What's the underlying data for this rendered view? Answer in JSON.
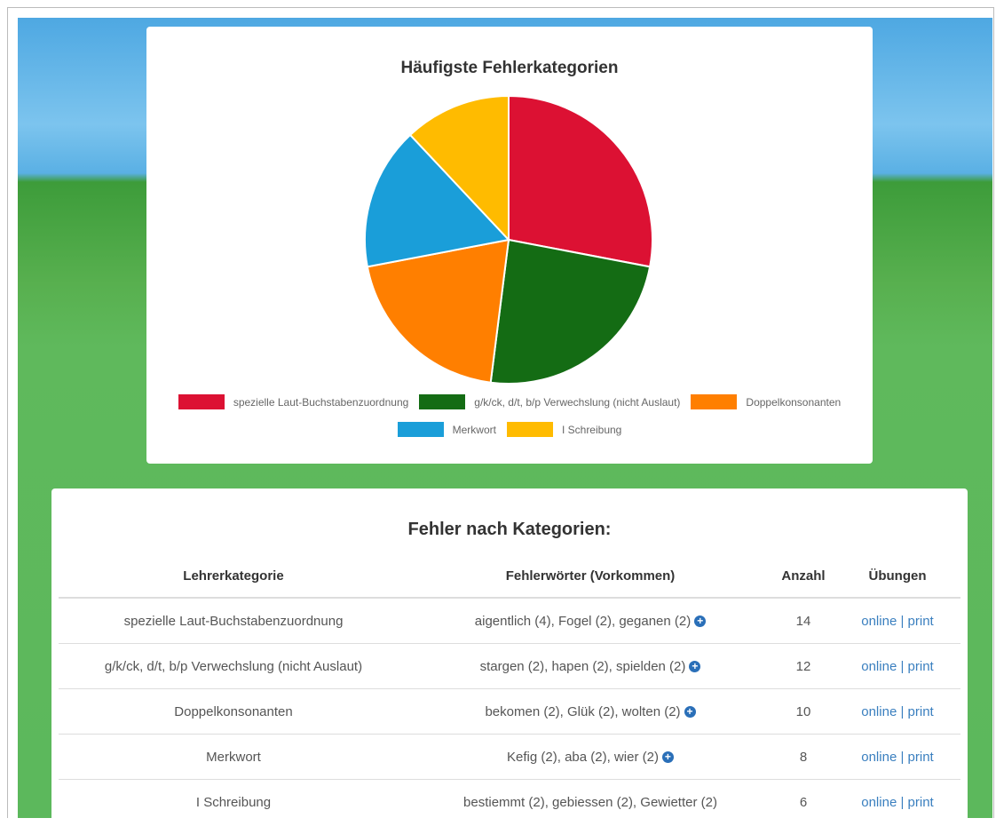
{
  "chart_data": {
    "type": "pie",
    "title": "Häufigste Fehlerkategorien",
    "categories": [
      "spezielle Laut-Buchstabenzuordnung",
      "g/k/ck, d/t, b/p Verwechslung (nicht Auslaut)",
      "Doppelkonsonanten",
      "Merkwort",
      "I Schreibung"
    ],
    "values": [
      14,
      12,
      10,
      8,
      6
    ],
    "colors": [
      "#dc1133",
      "#146c14",
      "#ff7f00",
      "#1a9ed9",
      "#ffbb00"
    ]
  },
  "table": {
    "title": "Fehler nach Kategorien:",
    "headers": [
      "Lehrerkategorie",
      "Fehlerwörter (Vorkommen)",
      "Anzahl",
      "Übungen"
    ],
    "link_separator": "|",
    "rows": [
      {
        "category": "spezielle Laut-Buchstabenzuordnung",
        "words": "aigentlich (4), Fogel (2), geganen (2)",
        "expandable": true,
        "count": 14,
        "links": [
          "online",
          "print"
        ]
      },
      {
        "category": "g/k/ck, d/t, b/p Verwechslung (nicht Auslaut)",
        "words": "stargen (2), hapen (2), spielden (2)",
        "expandable": true,
        "count": 12,
        "links": [
          "online",
          "print"
        ]
      },
      {
        "category": "Doppelkonsonanten",
        "words": "bekomen (2), Glük (2), wolten (2)",
        "expandable": true,
        "count": 10,
        "links": [
          "online",
          "print"
        ]
      },
      {
        "category": "Merkwort",
        "words": "Kefig (2), aba (2), wier (2)",
        "expandable": true,
        "count": 8,
        "links": [
          "online",
          "print"
        ]
      },
      {
        "category": "I Schreibung",
        "words": "bestiemmt (2), gebiessen (2), Gewietter (2)",
        "expandable": false,
        "count": 6,
        "links": [
          "online",
          "print"
        ]
      }
    ]
  }
}
